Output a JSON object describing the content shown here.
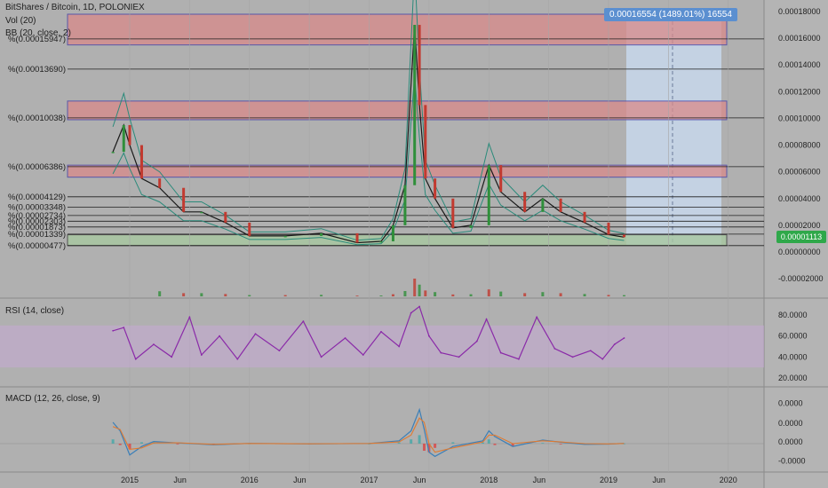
{
  "header": {
    "title": "BitShares / Bitcoin, 1D, POLONIEX",
    "vol_label": "Vol (20)",
    "bb_label": "BB (20, close, 2)"
  },
  "measure_label": {
    "text": "0.00016554 (1489.01%) 16554"
  },
  "current_price": {
    "text": "0.00001113"
  },
  "rsi_label": "RSI (14, close)",
  "macd_label": "MACD (12, 26, close, 9)",
  "colors": {
    "background": "#b0b0b0",
    "zone_fill": "#d88a8a",
    "zone_border": "#3a3aa8",
    "base_zone_fill": "#a8c8a0",
    "measure_fill": "#c8d8ec",
    "candle_up": "#2f8f3a",
    "candle_down": "#c23a30",
    "rsi_line": "#8a2aa8",
    "rsi_band": "#c8a8d8",
    "macd_line": "#3b7fb8",
    "signal_line": "#e07a30",
    "current_price_bg": "#2fa84a",
    "measure_label_bg": "#5b8fd0"
  },
  "chart_data": [
    {
      "type": "line",
      "name": "price",
      "x_tick_labels": [
        "2015",
        "Jun",
        "2016",
        "Jun",
        "2017",
        "Jun",
        "2018",
        "Jun",
        "2019",
        "Jun",
        "2020"
      ],
      "y_tick_labels": [
        "0.00018000",
        "0.00016000",
        "0.00014000",
        "0.00012000",
        "0.00010000",
        "0.00008000",
        "0.00006000",
        "0.00004000",
        "0.00002000",
        "0.00000000",
        "-0.00002000"
      ],
      "ylim": [
        -3.2e-05,
        0.000182
      ],
      "fib_levels": [
        {
          "label": "%(0.00015947)",
          "value": 0.00015947
        },
        {
          "label": "%(0.00013690)",
          "value": 0.0001369
        },
        {
          "label": "%(0.00010038)",
          "value": 0.00010038
        },
        {
          "label": "%(0.00006386)",
          "value": 6.386e-05
        },
        {
          "label": "%(0.00004129)",
          "value": 4.129e-05
        },
        {
          "label": "%(0.00003348)",
          "value": 3.348e-05
        },
        {
          "label": "%(0.00002734)",
          "value": 2.734e-05
        },
        {
          "label": "%(0.00002303)",
          "value": 2.303e-05
        },
        {
          "label": "%(0.00001873)",
          "value": 1.873e-05
        },
        {
          "label": "%(0.00001339)",
          "value": 1.339e-05
        },
        {
          "label": "%(0.00000477)",
          "value": 4.77e-06
        }
      ],
      "resistance_zones": [
        {
          "from": 0.000155,
          "to": 0.000178
        },
        {
          "from": 9.9e-05,
          "to": 0.000113
        },
        {
          "from": 5.6e-05,
          "to": 6.5e-05
        }
      ],
      "support_zone": {
        "from": 4.8e-06,
        "to": 1.29e-05
      },
      "measure": {
        "price_change": 0.00016554,
        "percent": 1489.01,
        "ticks": 16554
      },
      "current_price": 1.113e-05,
      "x": [
        2014.86,
        2014.95,
        2015.0,
        2015.1,
        2015.25,
        2015.45,
        2015.6,
        2015.8,
        2016.0,
        2016.3,
        2016.6,
        2016.9,
        2017.1,
        2017.2,
        2017.3,
        2017.38,
        2017.42,
        2017.47,
        2017.55,
        2017.7,
        2017.85,
        2018.0,
        2018.1,
        2018.3,
        2018.45,
        2018.6,
        2018.8,
        2019.0,
        2019.13
      ],
      "values": [
        7.5e-05,
        9.5e-05,
        8e-05,
        5.5e-05,
        4.8e-05,
        3e-05,
        3e-05,
        2.2e-05,
        1.2e-05,
        1.2e-05,
        1.4e-05,
        7e-06,
        8e-06,
        2e-05,
        5e-05,
        0.00017,
        0.00011,
        5.5e-05,
        4e-05,
        1.8e-05,
        2e-05,
        6.5e-05,
        4.5e-05,
        3e-05,
        4e-05,
        3e-05,
        2.2e-05,
        1.3e-05,
        1.11e-05
      ]
    },
    {
      "type": "line",
      "name": "RSI (14, close)",
      "y_tick_labels": [
        "80.0000",
        "60.0000",
        "40.0000",
        "20.0000"
      ],
      "ylim": [
        15,
        92
      ],
      "band": [
        30,
        70
      ],
      "x": [
        2014.86,
        2014.95,
        2015.05,
        2015.2,
        2015.35,
        2015.5,
        2015.6,
        2015.75,
        2015.9,
        2016.05,
        2016.25,
        2016.45,
        2016.6,
        2016.8,
        2016.95,
        2017.1,
        2017.25,
        2017.35,
        2017.42,
        2017.5,
        2017.6,
        2017.75,
        2017.9,
        2017.98,
        2018.1,
        2018.25,
        2018.4,
        2018.55,
        2018.7,
        2018.85,
        2018.95,
        2019.05,
        2019.13
      ],
      "values": [
        65,
        68,
        38,
        52,
        40,
        78,
        42,
        60,
        38,
        62,
        46,
        74,
        40,
        58,
        42,
        64,
        50,
        82,
        88,
        60,
        44,
        40,
        55,
        76,
        44,
        38,
        78,
        48,
        40,
        46,
        38,
        52,
        58
      ]
    },
    {
      "type": "line",
      "name": "MACD (12, 26, close, 9)",
      "y_tick_labels": [
        "0.0000",
        "0.0000",
        "0.0000",
        "-0.0000"
      ],
      "ylim": [
        -1.2e-05,
        2.8e-05
      ],
      "x": [
        2014.86,
        2014.92,
        2015.0,
        2015.1,
        2015.2,
        2015.4,
        2015.7,
        2016.0,
        2016.5,
        2017.0,
        2017.25,
        2017.35,
        2017.42,
        2017.46,
        2017.5,
        2017.55,
        2017.7,
        2017.95,
        2018.0,
        2018.05,
        2018.2,
        2018.45,
        2018.6,
        2018.8,
        2019.0,
        2019.13
      ],
      "values": [
        1.5e-05,
        9e-06,
        -8e-06,
        -2e-06,
        1.5e-06,
        5e-07,
        -8e-07,
        2e-07,
        -2e-07,
        1e-07,
        2e-06,
        9e-06,
        2.4e-05,
        1e-05,
        -6e-06,
        -9e-06,
        -2e-06,
        2e-06,
        9e-06,
        5e-06,
        -2e-06,
        2.5e-06,
        1e-06,
        -5e-07,
        -3e-07,
        2e-07
      ],
      "signal_values": [
        1.2e-05,
        1e-05,
        -4e-06,
        -3e-06,
        5e-07,
        6e-07,
        -5e-07,
        1e-07,
        -1e-07,
        1e-07,
        1.2e-06,
        6e-06,
        1.8e-05,
        1.5e-05,
        0.0,
        -6e-06,
        -3e-06,
        1.2e-06,
        6e-06,
        6e-06,
        0.0,
        2e-06,
        1.2e-06,
        0.0,
        -2e-07,
        1e-07
      ]
    }
  ]
}
